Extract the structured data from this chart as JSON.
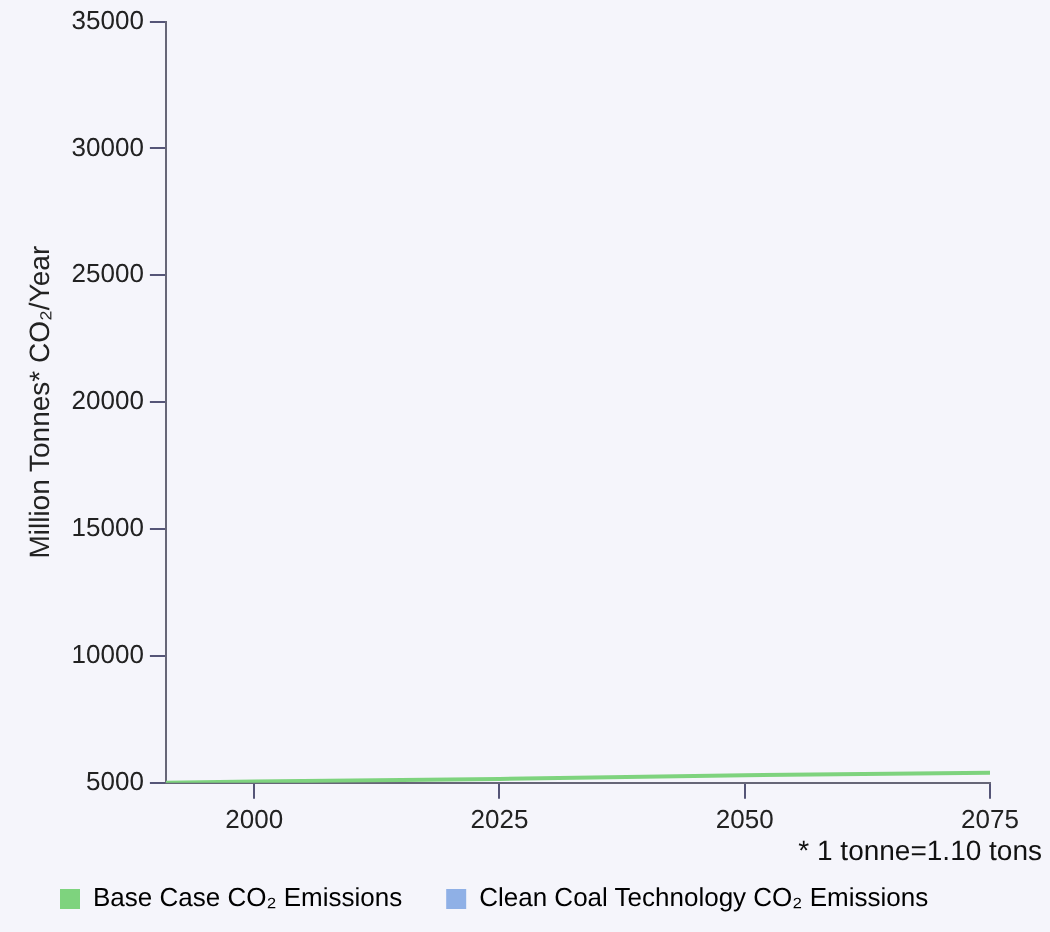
{
  "chart_data": {
    "type": "line",
    "ylabel": "Million Tonnes* CO₂/Year",
    "x": [
      1991,
      2000,
      2025,
      2050,
      2075
    ],
    "series": [
      {
        "name": "Base Case CO₂ Emissions",
        "color": "#7ed37e",
        "values": [
          5000,
          5050,
          5150,
          5300,
          5400
        ]
      },
      {
        "name": "Clean Coal Technology CO₂ Emissions",
        "color": "#8fb0e6",
        "values": [
          null,
          null,
          null,
          null,
          null
        ]
      }
    ],
    "xlim": [
      1991,
      2075
    ],
    "xticks": [
      2000,
      2025,
      2050,
      2075
    ],
    "ylim": [
      5000,
      35000
    ],
    "yticks": [
      5000,
      10000,
      15000,
      20000,
      25000,
      30000,
      35000
    ],
    "grid": false,
    "legend": "bottom",
    "marker": "none",
    "line_style": "solid",
    "annotations": [
      "* 1 tonne=1.10 tons"
    ]
  }
}
